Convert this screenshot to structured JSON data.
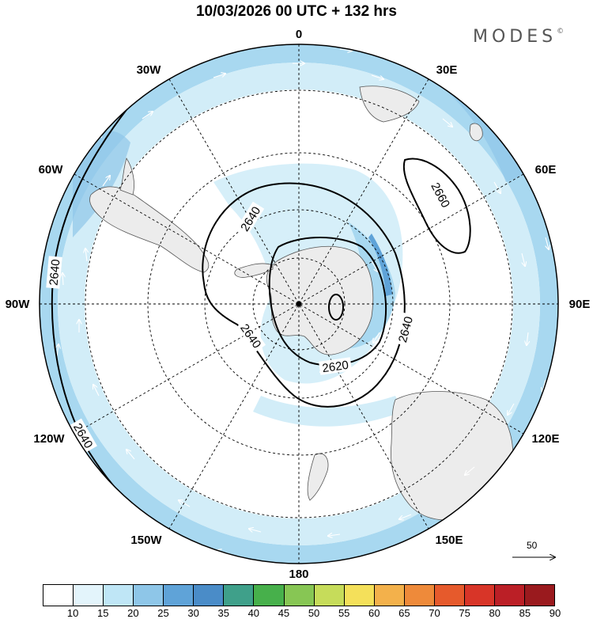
{
  "title": "10/03/2026  00 UTC  + 132 hrs",
  "brand": {
    "name": "MODES",
    "mark": "©"
  },
  "longitude_labels": [
    "0",
    "30E",
    "60E",
    "90E",
    "120E",
    "150E",
    "180",
    "150W",
    "120W",
    "90W",
    "60W",
    "30W"
  ],
  "contours": [
    {
      "label": "2640"
    },
    {
      "label": "2660"
    },
    {
      "label": "2620"
    }
  ],
  "wind_reference": {
    "label": "50"
  },
  "colorbar": {
    "colors": [
      "#ffffff",
      "#e3f4fb",
      "#bfe6f6",
      "#8ec6e8",
      "#5fa3d8",
      "#4a8cc8",
      "#3fa08a",
      "#47b04b",
      "#87c654",
      "#c6dc5a",
      "#f4e05a",
      "#f3b14b",
      "#ee8a3a",
      "#e65a2c",
      "#d83528",
      "#bb1f26",
      "#9a1a1e"
    ],
    "labels": [
      "10",
      "15",
      "20",
      "25",
      "30",
      "35",
      "40",
      "45",
      "50",
      "55",
      "60",
      "65",
      "70",
      "75",
      "80",
      "85",
      "90"
    ]
  },
  "icons": [
    "center-pole-dot-icon",
    "wind-arrow-icon",
    "reference-arrow-icon"
  ]
}
